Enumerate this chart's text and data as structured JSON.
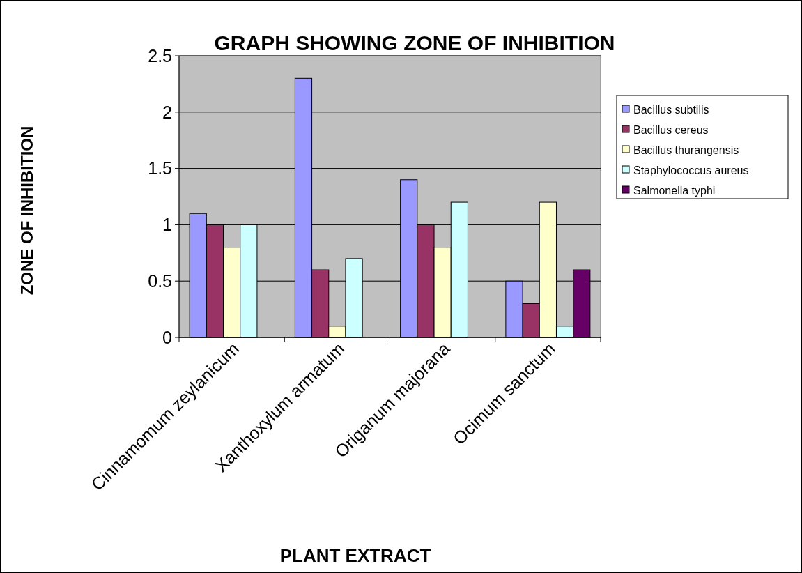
{
  "chart_data": {
    "type": "bar",
    "title": "GRAPH SHOWING ZONE OF INHIBITION",
    "xlabel": "PLANT EXTRACT",
    "ylabel": "ZONE OF INHIBITION",
    "categories": [
      "Cinnamomum zeylanicum",
      "Xanthoxylum armatum",
      "Origanum majorana",
      "Ocimum sanctum"
    ],
    "series": [
      {
        "name": "Bacillus subtilis",
        "color": "#9999ff",
        "values": [
          1.1,
          2.3,
          1.4,
          0.5
        ]
      },
      {
        "name": "Bacillus cereus",
        "color": "#993366",
        "values": [
          1.0,
          0.6,
          1.0,
          0.3
        ]
      },
      {
        "name": "Bacillus thurangensis",
        "color": "#ffffcc",
        "values": [
          0.8,
          0.1,
          0.8,
          1.2
        ]
      },
      {
        "name": "Staphylococcus aureus",
        "color": "#ccffff",
        "values": [
          1.0,
          0.7,
          1.2,
          0.1
        ]
      },
      {
        "name": "Salmonella typhi",
        "color": "#660066",
        "values": [
          null,
          null,
          null,
          0.6
        ]
      }
    ],
    "ylim": [
      0,
      2.5
    ],
    "yticks": [
      0,
      0.5,
      1,
      1.5,
      2,
      2.5
    ],
    "grid": "y",
    "legend": "right"
  }
}
